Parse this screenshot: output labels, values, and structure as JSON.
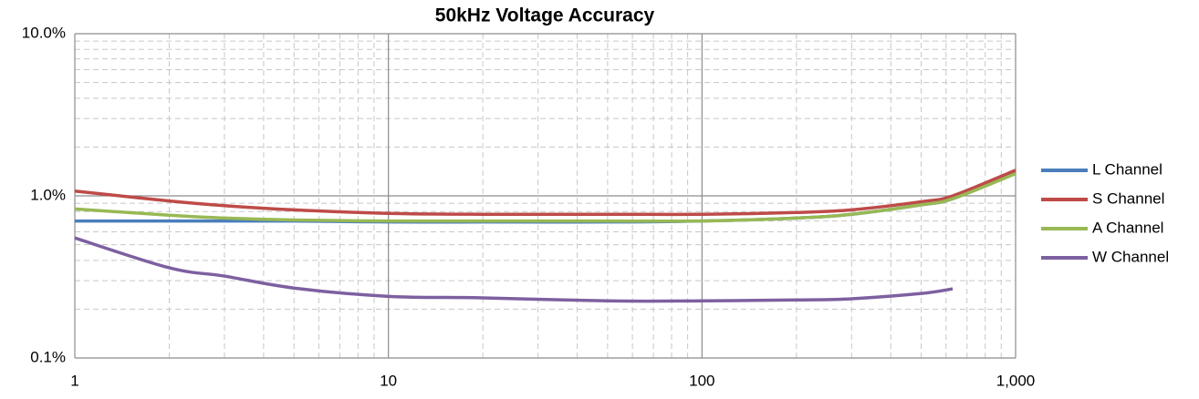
{
  "chart_data": {
    "type": "line",
    "title": "50kHz Voltage Accuracy",
    "x": [
      1,
      2,
      3,
      5,
      10,
      20,
      50,
      100,
      200,
      300,
      500,
      630,
      1000
    ],
    "series": [
      {
        "name": "L Channel",
        "color": "#4a7ebb",
        "values": [
          0.7,
          0.7,
          0.7,
          0.7,
          0.69,
          0.69,
          0.69,
          0.7,
          0.73,
          0.77,
          0.88,
          0.96,
          1.38
        ]
      },
      {
        "name": "S Channel",
        "color": "#be4b48",
        "values": [
          1.07,
          0.93,
          0.87,
          0.82,
          0.78,
          0.77,
          0.77,
          0.77,
          0.79,
          0.82,
          0.92,
          1.0,
          1.44
        ]
      },
      {
        "name": "A Channel",
        "color": "#98b954",
        "values": [
          0.83,
          0.76,
          0.73,
          0.71,
          0.7,
          0.7,
          0.7,
          0.7,
          0.73,
          0.77,
          0.88,
          0.96,
          1.37
        ]
      },
      {
        "name": "W Channel",
        "color": "#7d60a0",
        "values": [
          0.55,
          0.36,
          0.32,
          0.27,
          0.24,
          0.235,
          0.225,
          0.225,
          0.228,
          0.232,
          0.25,
          0.267,
          null
        ]
      }
    ],
    "xlim": [
      1,
      1000
    ],
    "xticks": [
      1,
      10,
      100,
      {
        "value": 1000,
        "label": "1,000"
      }
    ],
    "ylim": [
      0.1,
      10
    ],
    "yticks": [
      {
        "value": 0.1,
        "label": "0.1%"
      },
      {
        "value": 1,
        "label": "1.0%"
      },
      {
        "value": 10,
        "label": "10.0%"
      }
    ],
    "xscale": "log",
    "yscale": "log",
    "grid": true,
    "minor_grid": true,
    "legend": "right"
  }
}
